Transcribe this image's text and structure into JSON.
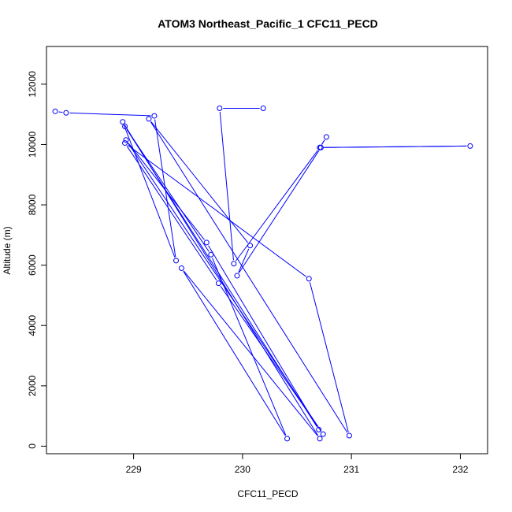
{
  "chart_data": {
    "type": "line",
    "title": "ATOM3 Northeast_Pacific_1 CFC11_PECD",
    "xlabel": "CFC11_PECD",
    "ylabel": "Altitude (m)",
    "xlim": [
      228.2,
      232.25
    ],
    "ylim": [
      -250,
      13250
    ],
    "xticks": [
      229,
      230,
      231,
      232
    ],
    "yticks": [
      0,
      2000,
      4000,
      6000,
      8000,
      10000,
      12000
    ],
    "grid": false,
    "legend": "none",
    "series": [
      {
        "color": "#0000ff",
        "marker": "open-circle",
        "x": [
          228.28,
          228.38,
          229.19,
          229.39,
          228.9,
          230.71,
          229.44,
          230.41,
          229.71,
          228.92,
          230.7,
          229.67,
          228.93,
          230.74,
          229.78,
          228.92,
          230.61,
          230.98,
          229.14,
          230.07,
          229.95,
          230.72,
          232.09,
          230.71,
          230.77,
          230.71,
          229.92,
          229.79,
          230.19
        ],
        "y": [
          11100,
          11050,
          10950,
          6150,
          10750,
          250,
          5900,
          250,
          6350,
          10600,
          550,
          6750,
          10150,
          400,
          5400,
          10050,
          5550,
          350,
          10850,
          6650,
          5650,
          9900,
          9950,
          9900,
          10250,
          9900,
          6050,
          11200,
          11200
        ]
      }
    ]
  }
}
